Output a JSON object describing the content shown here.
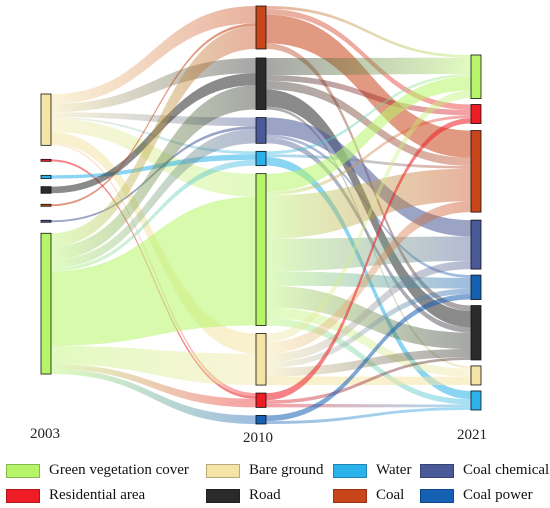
{
  "years": [
    "2003",
    "2010",
    "2021"
  ],
  "categories": [
    {
      "key": "green",
      "label": "Green vegetation cover",
      "color": "#b6f56a"
    },
    {
      "key": "bare",
      "label": "Bare ground",
      "color": "#f4e4a6"
    },
    {
      "key": "water",
      "label": "Water",
      "color": "#2bb2ea"
    },
    {
      "key": "coalchem",
      "label": "Coal chemical",
      "color": "#4a5a98"
    },
    {
      "key": "resid",
      "label": "Residential area",
      "color": "#ee1c24"
    },
    {
      "key": "road",
      "label": "Road",
      "color": "#2b2b2b"
    },
    {
      "key": "coal",
      "label": "Coal",
      "color": "#c8461a"
    },
    {
      "key": "power",
      "label": "Coal power",
      "color": "#1660b4"
    }
  ],
  "flows": [
    [
      "2003",
      "bare",
      "2010",
      "coal",
      6
    ],
    [
      "2003",
      "bare",
      "2010",
      "road",
      5
    ],
    [
      "2003",
      "bare",
      "2010",
      "coalchem",
      3
    ],
    [
      "2003",
      "bare",
      "2010",
      "water",
      1
    ],
    [
      "2003",
      "bare",
      "2010",
      "green",
      8
    ],
    [
      "2003",
      "bare",
      "2010",
      "bare",
      7
    ],
    [
      "2003",
      "bare",
      "2010",
      "resid",
      1
    ],
    [
      "2003",
      "green",
      "2010",
      "coal",
      8
    ],
    [
      "2003",
      "green",
      "2010",
      "road",
      8
    ],
    [
      "2003",
      "green",
      "2010",
      "coalchem",
      5
    ],
    [
      "2003",
      "green",
      "2010",
      "water",
      2
    ],
    [
      "2003",
      "green",
      "2010",
      "green",
      45
    ],
    [
      "2003",
      "green",
      "2010",
      "bare",
      11
    ],
    [
      "2003",
      "green",
      "2010",
      "resid",
      3
    ],
    [
      "2003",
      "green",
      "2010",
      "power",
      3
    ],
    [
      "2003",
      "resid",
      "2010",
      "resid",
      1
    ],
    [
      "2003",
      "water",
      "2010",
      "water",
      2
    ],
    [
      "2003",
      "road",
      "2010",
      "road",
      4
    ],
    [
      "2003",
      "coal",
      "2010",
      "coal",
      1
    ],
    [
      "2003",
      "coalchem",
      "2010",
      "coalchem",
      1
    ],
    [
      "2010",
      "coal",
      "2021",
      "coal",
      10
    ],
    [
      "2010",
      "coal",
      "2021",
      "resid",
      2
    ],
    [
      "2010",
      "coal",
      "2021",
      "green",
      1
    ],
    [
      "2010",
      "coal",
      "2021",
      "road",
      2
    ],
    [
      "2010",
      "road",
      "2021",
      "green",
      6
    ],
    [
      "2010",
      "road",
      "2021",
      "road",
      6
    ],
    [
      "2010",
      "road",
      "2021",
      "resid",
      2
    ],
    [
      "2010",
      "road",
      "2021",
      "coal",
      3
    ],
    [
      "2010",
      "road",
      "2021",
      "bare",
      1
    ],
    [
      "2010",
      "coalchem",
      "2021",
      "coalchem",
      6
    ],
    [
      "2010",
      "coalchem",
      "2021",
      "power",
      1
    ],
    [
      "2010",
      "coalchem",
      "2021",
      "road",
      2
    ],
    [
      "2010",
      "water",
      "2021",
      "water",
      3
    ],
    [
      "2010",
      "water",
      "2021",
      "green",
      1
    ],
    [
      "2010",
      "water",
      "2021",
      "coal",
      1
    ],
    [
      "2010",
      "green",
      "2021",
      "green",
      5
    ],
    [
      "2010",
      "green",
      "2021",
      "coal",
      12
    ],
    [
      "2010",
      "green",
      "2021",
      "coalchem",
      9
    ],
    [
      "2010",
      "green",
      "2021",
      "road",
      6
    ],
    [
      "2010",
      "green",
      "2021",
      "power",
      4
    ],
    [
      "2010",
      "green",
      "2021",
      "bare",
      3
    ],
    [
      "2010",
      "green",
      "2021",
      "resid",
      1
    ],
    [
      "2010",
      "green",
      "2021",
      "water",
      2
    ],
    [
      "2010",
      "bare",
      "2021",
      "coal",
      4
    ],
    [
      "2010",
      "bare",
      "2021",
      "coalchem",
      3
    ],
    [
      "2010",
      "bare",
      "2021",
      "road",
      3
    ],
    [
      "2010",
      "bare",
      "2021",
      "power",
      2
    ],
    [
      "2010",
      "bare",
      "2021",
      "bare",
      3
    ],
    [
      "2010",
      "bare",
      "2021",
      "green",
      3
    ],
    [
      "2010",
      "resid",
      "2021",
      "resid",
      2
    ],
    [
      "2010",
      "resid",
      "2021",
      "water",
      1
    ],
    [
      "2010",
      "resid",
      "2021",
      "road",
      1
    ],
    [
      "2010",
      "power",
      "2021",
      "power",
      2
    ],
    [
      "2010",
      "power",
      "2021",
      "water",
      1
    ]
  ]
}
